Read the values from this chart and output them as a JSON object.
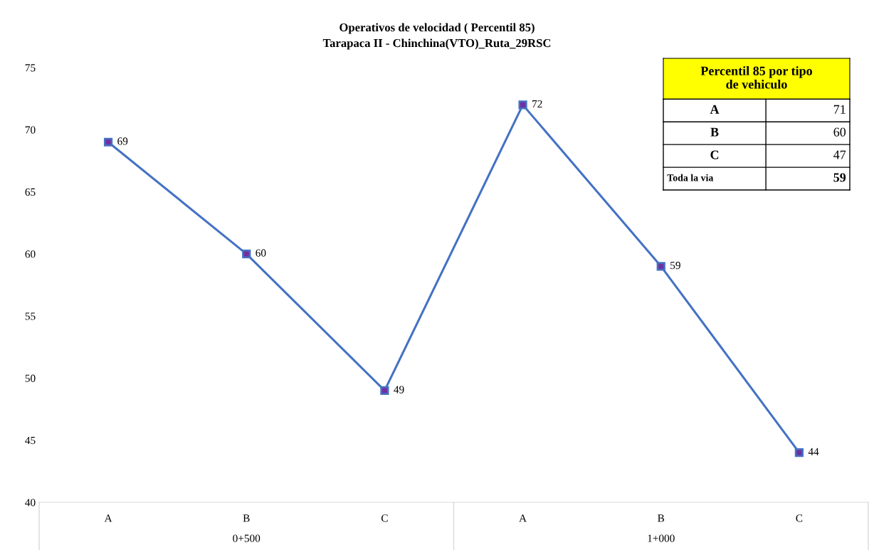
{
  "chart_data": [
    {
      "type": "line",
      "title": "Operativos de velocidad ( Percentil 85)",
      "subtitle": "Tarapaca II - Chinchina(VTO)_Ruta_29RSC",
      "categories": [
        "A",
        "B",
        "C",
        "A",
        "B",
        "C"
      ],
      "series": [
        {
          "color": "#4472c4",
          "values": [
            69,
            60,
            49,
            72,
            59,
            44
          ]
        }
      ],
      "ylim": [
        40,
        75
      ],
      "yticks": [
        40,
        45,
        50,
        55,
        60,
        65,
        70,
        75
      ],
      "grid": false,
      "legend": false,
      "marker": "square",
      "line_style": "solid",
      "data_labels": true,
      "annotations": [
        "0+500",
        "1+000"
      ]
    },
    {
      "type": "other",
      "annotations": [
        "Percentil 85 por tipo de vehiculo",
        "A",
        "71",
        "B",
        "60",
        "C",
        "47",
        "Toda la via",
        "59"
      ]
    }
  ]
}
